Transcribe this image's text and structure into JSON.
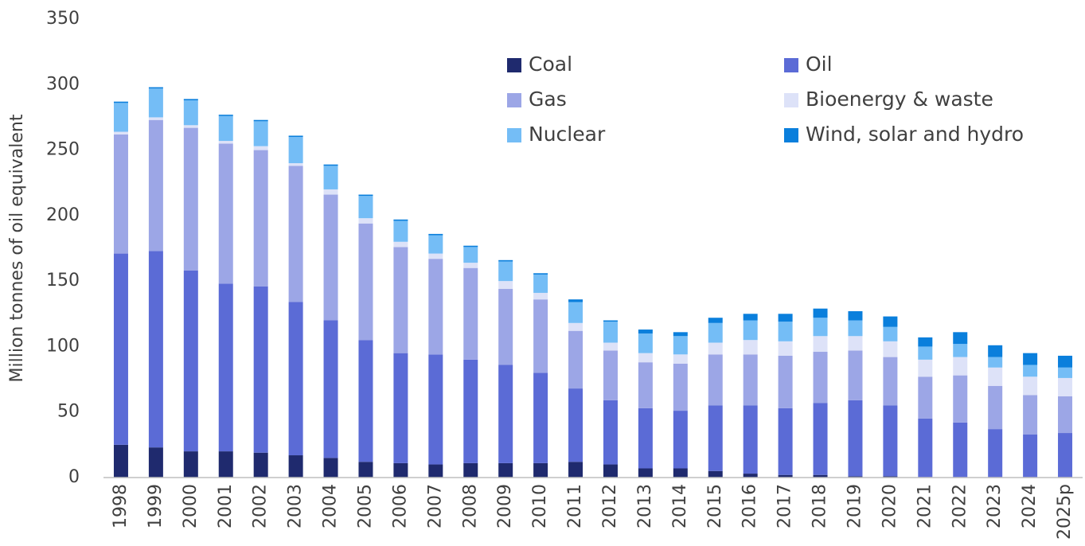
{
  "chart_data": {
    "type": "stacked_bar",
    "y_label": "Million tonnes of oil equivalent",
    "categories": [
      "1998",
      "1999",
      "2000",
      "2001",
      "2002",
      "2003",
      "2004",
      "2005",
      "2006",
      "2007",
      "2008",
      "2009",
      "2010",
      "2011",
      "2012",
      "2013",
      "2014",
      "2015",
      "2016",
      "2017",
      "2018",
      "2019",
      "2020",
      "2021",
      "2022",
      "2023",
      "2024",
      "2025p"
    ],
    "series": [
      {
        "name": "Coal",
        "color": "#1f2a6e",
        "values": [
          25,
          23,
          20,
          20,
          19,
          17,
          15,
          12,
          11,
          10,
          11,
          11,
          11,
          12,
          10,
          7,
          7,
          5,
          3,
          2,
          2,
          1,
          1,
          0,
          0,
          0,
          0,
          0
        ]
      },
      {
        "name": "Oil",
        "color": "#5b6bd6",
        "values": [
          146,
          150,
          138,
          128,
          127,
          117,
          105,
          93,
          84,
          84,
          79,
          75,
          69,
          56,
          49,
          46,
          44,
          50,
          52,
          51,
          55,
          58,
          54,
          45,
          42,
          37,
          33,
          34
        ]
      },
      {
        "name": "Gas",
        "color": "#9ca6e6",
        "values": [
          91,
          100,
          109,
          107,
          104,
          104,
          96,
          89,
          81,
          73,
          70,
          58,
          56,
          44,
          38,
          35,
          36,
          39,
          39,
          40,
          39,
          38,
          37,
          32,
          36,
          33,
          30,
          28
        ]
      },
      {
        "name": "Bioenergy & waste",
        "color": "#dde2f8",
        "values": [
          2,
          2,
          2,
          2,
          3,
          2,
          4,
          4,
          4,
          4,
          4,
          6,
          5,
          6,
          6,
          7,
          7,
          9,
          11,
          11,
          12,
          11,
          12,
          13,
          14,
          14,
          14,
          14
        ]
      },
      {
        "name": "Nuclear",
        "color": "#74bdf6",
        "values": [
          22,
          22,
          19,
          19,
          19,
          20,
          18,
          17,
          16,
          14,
          12,
          15,
          14,
          16,
          16,
          15,
          14,
          15,
          15,
          15,
          14,
          12,
          11,
          10,
          10,
          8,
          9,
          8
        ]
      },
      {
        "name": "Wind, solar and hydro",
        "color": "#0a7fdc",
        "values": [
          1,
          1,
          1,
          1,
          1,
          1,
          1,
          1,
          1,
          1,
          1,
          1,
          1,
          2,
          1,
          3,
          3,
          4,
          5,
          6,
          7,
          7,
          8,
          7,
          9,
          9,
          9,
          9
        ]
      }
    ],
    "ylim": [
      0,
      350
    ],
    "yticks": [
      0,
      50,
      100,
      150,
      200,
      250,
      300,
      350
    ],
    "grid": false
  }
}
